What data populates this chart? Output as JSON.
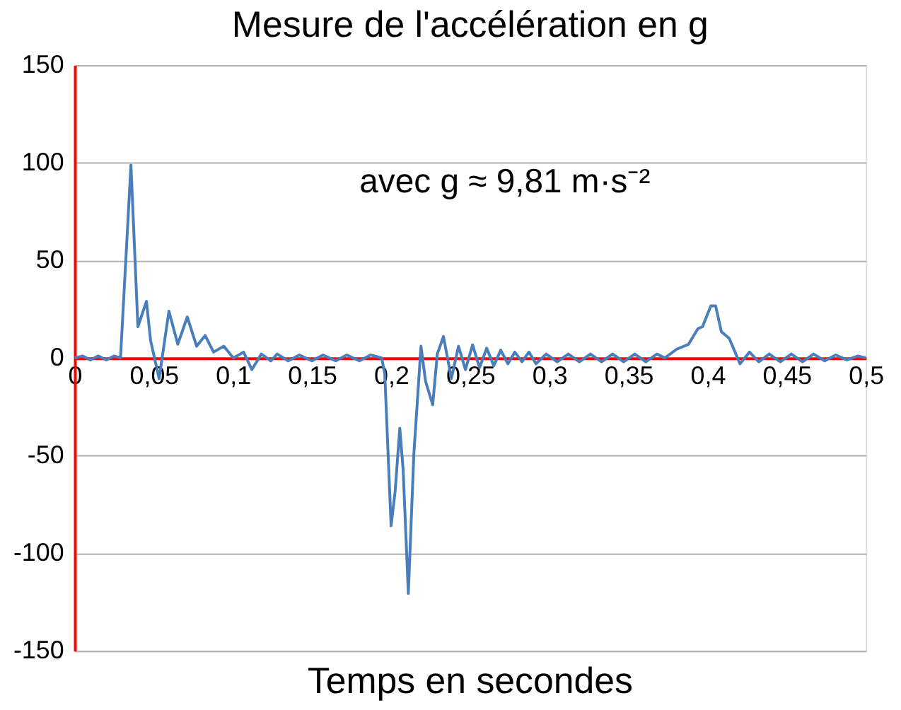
{
  "chart_data": {
    "type": "line",
    "title": "Mesure de l'accélération en g",
    "xlabel": "Temps en secondes",
    "annotations": [
      "avec g ≈ 9,81 m·s⁻²"
    ],
    "x": [
      0,
      0.005,
      0.01,
      0.015,
      0.02,
      0.025,
      0.029,
      0.0356,
      0.04,
      0.0454,
      0.048,
      0.0534,
      0.0596,
      0.0652,
      0.0712,
      0.0771,
      0.0825,
      0.0878,
      0.0943,
      0.1003,
      0.1068,
      0.112,
      0.118,
      0.124,
      0.128,
      0.135,
      0.142,
      0.15,
      0.157,
      0.165,
      0.172,
      0.18,
      0.187,
      0.194,
      0.196,
      0.2,
      0.2026,
      0.2055,
      0.2076,
      0.2109,
      0.2144,
      0.2189,
      0.2218,
      0.2263,
      0.2292,
      0.2331,
      0.2381,
      0.2426,
      0.247,
      0.2515,
      0.2559,
      0.2604,
      0.2649,
      0.2693,
      0.2738,
      0.2782,
      0.2827,
      0.2871,
      0.2916,
      0.298,
      0.305,
      0.312,
      0.319,
      0.326,
      0.333,
      0.34,
      0.347,
      0.354,
      0.361,
      0.368,
      0.373,
      0.3805,
      0.388,
      0.3939,
      0.3968,
      0.4021,
      0.4051,
      0.4087,
      0.4137,
      0.4205,
      0.4265,
      0.4324,
      0.439,
      0.446,
      0.453,
      0.46,
      0.467,
      0.474,
      0.481,
      0.488,
      0.495,
      0.5
    ],
    "series": [
      {
        "color": "#4a7ebb",
        "values": [
          0,
          1,
          -1,
          1,
          -1,
          1,
          0,
          98.8,
          16,
          29,
          9,
          -10.6,
          24,
          7,
          21,
          6,
          11.5,
          3,
          6,
          0,
          3,
          -6,
          2,
          -1.5,
          2,
          -1.5,
          1.5,
          -1.5,
          1.5,
          -1.5,
          1.5,
          -1.5,
          1.5,
          0,
          -8,
          -86,
          -68,
          -36,
          -57,
          -120.6,
          -49,
          6,
          -12,
          -24,
          2,
          11,
          -10.6,
          6,
          -6,
          6.7,
          -5,
          5,
          -4,
          4,
          -3,
          3,
          -2,
          3,
          -3,
          2,
          -2,
          2,
          -2,
          2,
          -2,
          2,
          -2,
          2,
          -2,
          2,
          0,
          4.5,
          7,
          15,
          16,
          26.7,
          26.7,
          13.5,
          10,
          -3,
          3,
          -2,
          2,
          -2,
          2,
          -2,
          2,
          -1.5,
          1.5,
          -1,
          1,
          0
        ]
      }
    ],
    "xlim": [
      0,
      0.5
    ],
    "ylim": [
      -150,
      150
    ],
    "xticks": [
      0,
      {
        "value": 0.05,
        "label": "0,05"
      },
      {
        "value": 0.1,
        "label": "0,1"
      },
      {
        "value": 0.15,
        "label": "0,15"
      },
      {
        "value": 0.2,
        "label": "0,2"
      },
      {
        "value": 0.25,
        "label": "0,25"
      },
      {
        "value": 0.3,
        "label": "0,3"
      },
      {
        "value": 0.35,
        "label": "0,35"
      },
      {
        "value": 0.4,
        "label": "0,4"
      },
      {
        "value": 0.45,
        "label": "0,45"
      },
      {
        "value": 0.5,
        "label": "0,5"
      }
    ],
    "yticks": [
      -150,
      -100,
      -50,
      0,
      50,
      100,
      150
    ],
    "grid": "y",
    "legend": false,
    "marker": "none",
    "line_style": "solid"
  }
}
